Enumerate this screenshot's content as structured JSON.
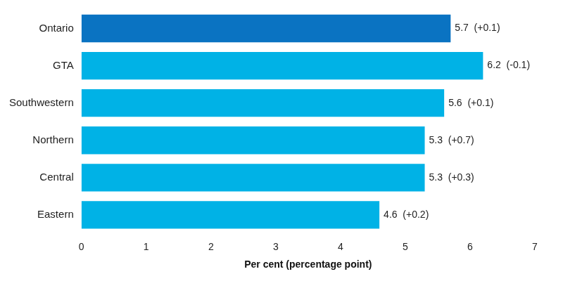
{
  "chart_data": {
    "type": "bar",
    "orientation": "horizontal",
    "categories": [
      "Ontario",
      "GTA",
      "Southwestern",
      "Northern",
      "Central",
      "Eastern"
    ],
    "values": [
      5.7,
      6.2,
      5.6,
      5.3,
      5.3,
      4.6
    ],
    "value_labels": [
      "5.7  (+0.1)",
      "6.2  (-0.1)",
      "5.6  (+0.1)",
      "5.3  (+0.7)",
      "5.3  (+0.3)",
      "4.6  (+0.2)"
    ],
    "colors": [
      "#0a73c2",
      "#00b2e6",
      "#00b2e6",
      "#00b2e6",
      "#00b2e6",
      "#00b2e6"
    ],
    "xlabel": "Per cent (percentage point)",
    "xlim": [
      0,
      7
    ],
    "xticks": [
      0,
      1,
      2,
      3,
      4,
      5,
      6,
      7
    ],
    "grid": false,
    "data_labels": true
  }
}
